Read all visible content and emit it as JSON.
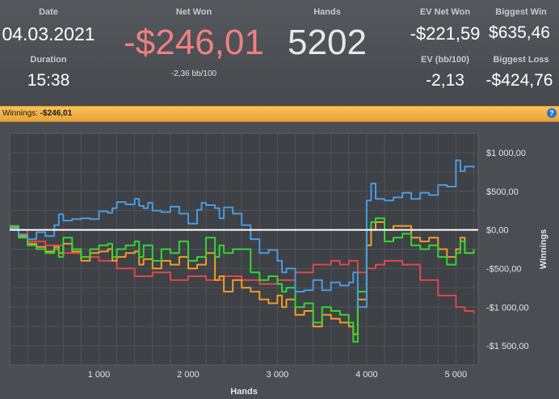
{
  "stats": {
    "date_label": "Date",
    "date_value": "04.03.2021",
    "duration_label": "Duration",
    "duration_value": "15:38",
    "net_won_label": "Net Won",
    "net_won_value": "-$246,01",
    "net_won_sub": "-2,36 bb/100",
    "hands_label": "Hands",
    "hands_value": "5202",
    "ev_net_won_label": "EV Net Won",
    "ev_net_won_value": "-$221,59",
    "ev_bb_label": "EV (bb/100)",
    "ev_bb_value": "-2,13",
    "biggest_win_label": "Biggest Win",
    "biggest_win_value": "$635,46",
    "biggest_loss_label": "Biggest Loss",
    "biggest_loss_value": "-$424,76"
  },
  "winnings_bar": {
    "label": "Winnings:",
    "value": "-$246,01",
    "help_icon": "question-icon",
    "help_glyph": "?"
  },
  "colors": {
    "net_won": "#f08080",
    "blue": "#4a9be0",
    "green": "#33d633",
    "orange": "#f59a2a",
    "red": "#e04848",
    "zero_line": "#ffffff"
  },
  "chart_data": {
    "type": "line",
    "xlabel": "Hands",
    "ylabel": "Winnings",
    "xlim": [
      0,
      5250
    ],
    "ylim": [
      -1750,
      1250
    ],
    "x_ticks": [
      1000,
      2000,
      3000,
      4000,
      5000
    ],
    "x_tick_labels": [
      "1 000",
      "2 000",
      "3 000",
      "4 000",
      "5 000"
    ],
    "y_ticks": [
      1000,
      500,
      0,
      -500,
      -1000,
      -1500
    ],
    "y_tick_labels": [
      "$1 000,00",
      "$500,00",
      "$0,00",
      "-$500,00",
      "-$1 000,00",
      "-$1 500,00"
    ],
    "grid": true,
    "series": [
      {
        "color": "#4a9be0",
        "x": [
          0,
          100,
          200,
          300,
          400,
          500,
          550,
          600,
          700,
          800,
          900,
          1000,
          1100,
          1150,
          1200,
          1300,
          1400,
          1450,
          1500,
          1550,
          1600,
          1700,
          1800,
          1900,
          2000,
          2100,
          2150,
          2200,
          2300,
          2350,
          2400,
          2500,
          2600,
          2700,
          2800,
          2900,
          3000,
          3050,
          3100,
          3200,
          3300,
          3400,
          3500,
          3600,
          3700,
          3800,
          3850,
          3900,
          4000,
          4050,
          4100,
          4200,
          4300,
          4400,
          4500,
          4600,
          4700,
          4800,
          4900,
          5000,
          5050,
          5100,
          5200
        ],
        "y": [
          20,
          -60,
          -120,
          -30,
          -80,
          60,
          200,
          120,
          140,
          150,
          140,
          240,
          220,
          280,
          360,
          330,
          400,
          310,
          280,
          350,
          250,
          230,
          300,
          210,
          80,
          260,
          350,
          320,
          280,
          150,
          290,
          210,
          60,
          -120,
          -300,
          -260,
          -400,
          -550,
          -500,
          -800,
          -780,
          -650,
          -780,
          -680,
          -720,
          -680,
          -550,
          -1000,
          380,
          600,
          400,
          380,
          420,
          480,
          400,
          480,
          450,
          580,
          560,
          900,
          760,
          820,
          800
        ]
      },
      {
        "color": "#33d633",
        "x": [
          0,
          100,
          200,
          300,
          400,
          500,
          550,
          600,
          700,
          800,
          900,
          1000,
          1100,
          1150,
          1200,
          1300,
          1400,
          1450,
          1500,
          1600,
          1700,
          1800,
          1900,
          2000,
          2100,
          2200,
          2300,
          2350,
          2400,
          2500,
          2600,
          2700,
          2800,
          2900,
          3000,
          3050,
          3100,
          3200,
          3300,
          3400,
          3500,
          3600,
          3700,
          3800,
          3850,
          3900,
          4000,
          4050,
          4100,
          4200,
          4300,
          4400,
          4500,
          4600,
          4700,
          4800,
          4900,
          5000,
          5050,
          5100,
          5200
        ],
        "y": [
          50,
          -100,
          -200,
          -250,
          -300,
          -250,
          -350,
          -100,
          -250,
          -350,
          -250,
          -200,
          -180,
          -350,
          -250,
          -200,
          -150,
          -350,
          -200,
          -400,
          -250,
          -300,
          -150,
          -400,
          -350,
          -100,
          -350,
          -200,
          -300,
          -250,
          -250,
          -550,
          -650,
          -600,
          -700,
          -800,
          -750,
          -1000,
          -950,
          -1200,
          -1000,
          -1050,
          -1100,
          -1200,
          -1450,
          -800,
          0,
          100,
          150,
          -150,
          -100,
          -50,
          -200,
          -250,
          -200,
          -350,
          -450,
          -300,
          -150,
          -300,
          -250
        ]
      },
      {
        "color": "#f59a2a",
        "x": [
          0,
          100,
          200,
          300,
          400,
          500,
          550,
          600,
          700,
          800,
          900,
          1000,
          1100,
          1150,
          1200,
          1300,
          1400,
          1450,
          1500,
          1600,
          1700,
          1800,
          1900,
          2000,
          2100,
          2200,
          2300,
          2350,
          2400,
          2500,
          2600,
          2700,
          2800,
          2900,
          3000,
          3050,
          3100,
          3200,
          3300,
          3400,
          3500,
          3600,
          3700,
          3800,
          3850,
          3900,
          4000,
          4050,
          4100,
          4200,
          4300,
          4400,
          4500,
          4600,
          4700,
          4800,
          4900,
          5000,
          5050,
          5100,
          5200
        ],
        "y": [
          30,
          -80,
          -180,
          -220,
          -280,
          -220,
          -300,
          -180,
          -280,
          -400,
          -300,
          -280,
          -250,
          -400,
          -350,
          -300,
          -280,
          -450,
          -380,
          -500,
          -400,
          -450,
          -350,
          -500,
          -450,
          -300,
          -650,
          -600,
          -800,
          -650,
          -750,
          -800,
          -900,
          -950,
          -850,
          -1000,
          -900,
          -1100,
          -1050,
          -1250,
          -1100,
          -1150,
          -1200,
          -1250,
          -1350,
          -900,
          -200,
          0,
          100,
          0,
          50,
          50,
          -100,
          -150,
          -100,
          -250,
          -350,
          -250,
          -100,
          -300,
          -250
        ]
      },
      {
        "color": "#e04848",
        "x": [
          0,
          200,
          400,
          600,
          800,
          1000,
          1200,
          1400,
          1600,
          1800,
          2000,
          2200,
          2400,
          2600,
          2800,
          3000,
          3200,
          3400,
          3600,
          3700,
          3800,
          3900,
          4000,
          4100,
          4200,
          4400,
          4600,
          4800,
          5000,
          5100,
          5200
        ],
        "y": [
          0,
          -150,
          -200,
          -300,
          -350,
          -400,
          -500,
          -600,
          -550,
          -650,
          -600,
          -650,
          -600,
          -650,
          -700,
          -650,
          -550,
          -450,
          -400,
          -450,
          -400,
          -550,
          -500,
          -450,
          -400,
          -450,
          -650,
          -850,
          -1000,
          -1050,
          -1080
        ]
      }
    ]
  }
}
